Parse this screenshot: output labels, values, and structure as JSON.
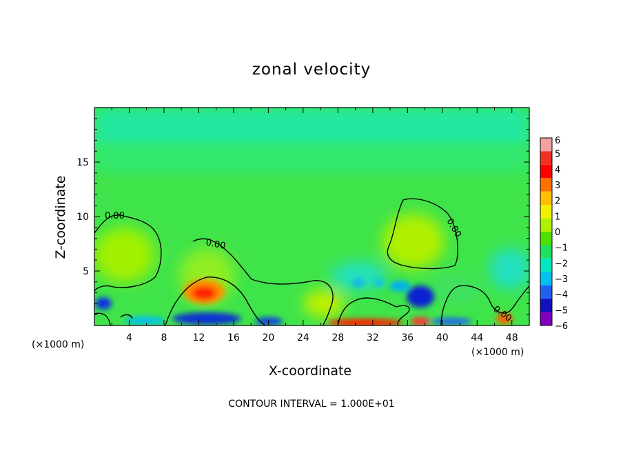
{
  "chart_data": {
    "type": "heatmap",
    "title": "zonal velocity",
    "xlabel": "X-coordinate",
    "ylabel": "Z-coordinate",
    "x_unit_left": "(×1000 m)",
    "x_unit_right": "(×1000 m)",
    "xlim": [
      0,
      50
    ],
    "ylim": [
      0,
      20
    ],
    "xticks": [
      "4",
      "8",
      "12",
      "16",
      "20",
      "24",
      "28",
      "32",
      "36",
      "40",
      "44",
      "48"
    ],
    "yticks": [
      "5",
      "10",
      "15"
    ],
    "contour_note": "CONTOUR INTERVAL = 1.000E+01",
    "contour_labels": [
      "0.00",
      "0.00",
      "0.00",
      "0.00"
    ],
    "colorbar": {
      "levels": [
        "6",
        "5",
        "4",
        "3",
        "2",
        "1",
        "0",
        "−1",
        "−2",
        "−3",
        "−4",
        "−5",
        "−6"
      ],
      "colors": [
        "#f4a0a0",
        "#f03020",
        "#ff0000",
        "#ff7000",
        "#ffc000",
        "#f0f000",
        "#b0f000",
        "#50e000",
        "#20e060",
        "#00e8c0",
        "#00c0f0",
        "#2060f0",
        "#1010c0",
        "#8000c0"
      ]
    },
    "background_value": 0.3,
    "features": [
      {
        "x": 2.5,
        "z": 6.0,
        "value": 1.0
      },
      {
        "x": 1.2,
        "z": 2.0,
        "value": -4.0
      },
      {
        "x": 12.5,
        "z": 3.0,
        "value": 5.0
      },
      {
        "x": 13.0,
        "z": 1.0,
        "value": -4.5
      },
      {
        "x": 29.0,
        "z": 0.4,
        "value": 5.0
      },
      {
        "x": 35.5,
        "z": 2.8,
        "value": -4.0
      },
      {
        "x": 37.0,
        "z": 6.5,
        "value": 1.5
      },
      {
        "x": 38.0,
        "z": 0.5,
        "value": 5.0
      },
      {
        "x": 47.0,
        "z": 0.8,
        "value": 3.0
      }
    ]
  }
}
